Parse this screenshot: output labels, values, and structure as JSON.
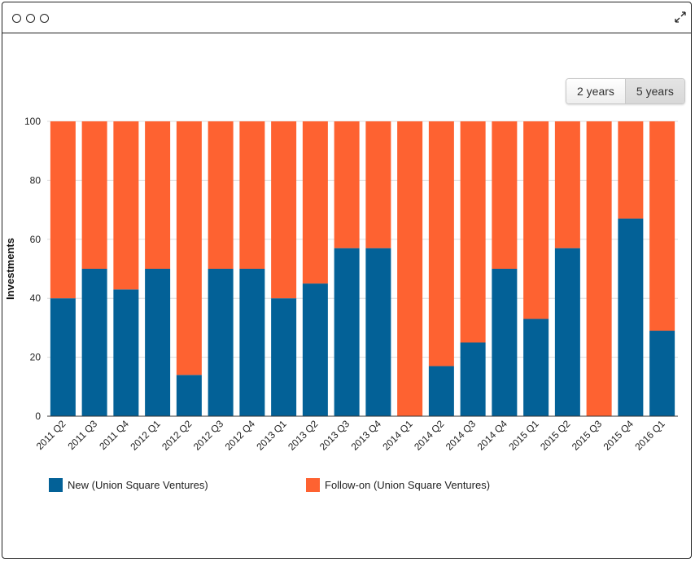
{
  "window": {
    "controls": [
      "close",
      "minimize",
      "maximize"
    ],
    "expand_icon": "expand-icon"
  },
  "range_buttons": [
    {
      "label": "2 years",
      "active": false
    },
    {
      "label": "5 years",
      "active": true
    }
  ],
  "colors": {
    "new": "#036197",
    "follow_on": "#fe6231",
    "grid": "#dddddd",
    "axis": "#333333"
  },
  "chart_data": {
    "type": "bar",
    "stacked": true,
    "title": "",
    "xlabel": "",
    "ylabel": "Investments",
    "ylim": [
      0,
      100
    ],
    "yticks": [
      0,
      20,
      40,
      60,
      80,
      100
    ],
    "categories": [
      "2011 Q2",
      "2011 Q3",
      "2011 Q4",
      "2012 Q1",
      "2012 Q2",
      "2012 Q3",
      "2012 Q4",
      "2013 Q1",
      "2013 Q2",
      "2013 Q3",
      "2013 Q4",
      "2014 Q1",
      "2014 Q2",
      "2014 Q3",
      "2014 Q4",
      "2015 Q1",
      "2015 Q2",
      "2015 Q3",
      "2015 Q4",
      "2016 Q1"
    ],
    "series": [
      {
        "name": "New (Union Square Ventures)",
        "color": "#036197",
        "values": [
          40,
          50,
          43,
          50,
          14,
          50,
          50,
          40,
          45,
          57,
          57,
          0,
          17,
          25,
          50,
          33,
          57,
          0,
          67,
          29
        ]
      },
      {
        "name": "Follow-on (Union Square Ventures)",
        "color": "#fe6231",
        "values": [
          60,
          50,
          57,
          50,
          86,
          50,
          50,
          60,
          55,
          43,
          43,
          100,
          83,
          75,
          50,
          67,
          43,
          100,
          33,
          71
        ]
      }
    ],
    "legend_position": "bottom"
  }
}
